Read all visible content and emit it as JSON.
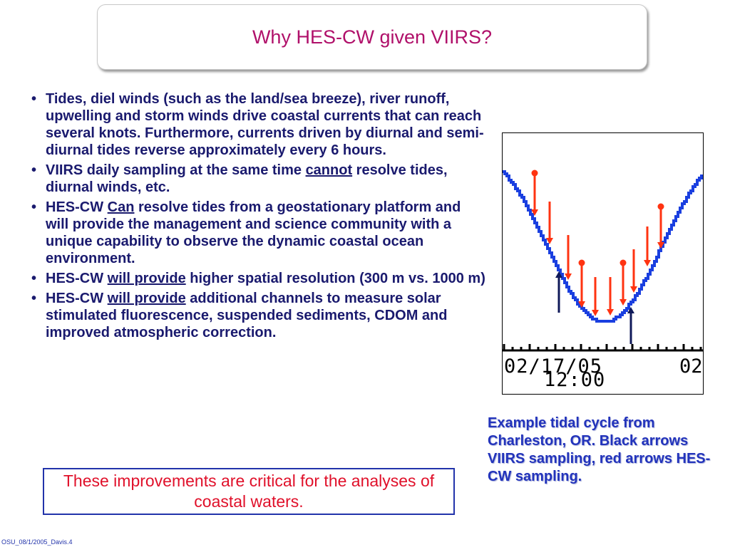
{
  "title": "Why HES-CW given VIIRS?",
  "bullets": [
    {
      "parts": [
        {
          "text": "Tides, diel winds (such as the land/sea breeze), river runoff, upwelling and storm winds drive coastal currents that can reach several knots. Furthermore, currents driven by diurnal and semi-diurnal tides reverse approximately every 6 hours."
        }
      ]
    },
    {
      "parts": [
        {
          "text": "VIIRS daily sampling at the same time "
        },
        {
          "text": "cannot",
          "underline": true
        },
        {
          "text": " resolve tides, diurnal winds, etc."
        }
      ]
    },
    {
      "parts": [
        {
          "text": "HES-CW "
        },
        {
          "text": "Can",
          "underline": true
        },
        {
          "text": " resolve tides from a geostationary platform and will provide the management and science community with a unique capability to observe the dynamic coastal ocean environment."
        }
      ]
    },
    {
      "parts": [
        {
          "text": "HES-CW "
        },
        {
          "text": "will provide",
          "underline": true
        },
        {
          "text": " higher spatial resolution (300 m vs. 1000 m)"
        }
      ]
    },
    {
      "parts": [
        {
          "text": "HES-CW "
        },
        {
          "text": "will provide",
          "underline": true
        },
        {
          "text": " additional channels to measure solar stimulated fluorescence, suspended sediments, CDOM and improved atmospheric correction."
        }
      ]
    }
  ],
  "callout": "These improvements are critical for the analyses of coastal waters.",
  "figure": {
    "date_label": "02/17/05",
    "date_label_cut": "02",
    "time_label": "12:00",
    "colors": {
      "curve": "#1a3fe0",
      "hes_arrows": "#ff3311",
      "viirs_arrows": "#101a5a",
      "axis": "#000000"
    }
  },
  "caption": "Example tidal cycle from Charleston, OR.  Black arrows VIIRS sampling, red arrows HES-CW sampling.",
  "footer": "OSU_08/1/2005_Davis.4"
}
